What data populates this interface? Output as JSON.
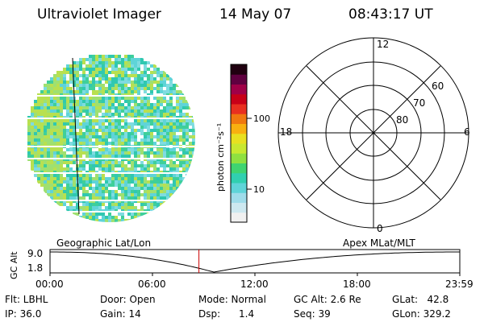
{
  "header": {
    "title": "Ultraviolet Imager",
    "date": "14 May 07",
    "time": "08:43:17 UT"
  },
  "colorbar": {
    "label": "photon cm⁻²s⁻¹",
    "ticks": [
      "100",
      "10"
    ],
    "scale": "log",
    "colors": [
      "#f0f0f0",
      "#cde8f0",
      "#9fdcea",
      "#5fd4d8",
      "#30d0b0",
      "#3fd470",
      "#8fe040",
      "#c8e830",
      "#e8e020",
      "#f8b010",
      "#f07810",
      "#e83020",
      "#c80018",
      "#a00048",
      "#600040",
      "#200010"
    ]
  },
  "image_panel": {
    "dominant_colors": [
      "#5fd4d8",
      "#30c8b0",
      "#9fe070",
      "#b0e040",
      "#ffffff"
    ]
  },
  "polar_plot": {
    "mlt_labels": {
      "top": "12",
      "left": "18",
      "right": "6",
      "bottom": "0"
    },
    "lat_labels": [
      "60",
      "70",
      "80"
    ],
    "rings": 4
  },
  "timeline": {
    "left_label": "Geographic Lat/Lon",
    "right_label": "Apex MLat/MLT",
    "y_axis_label": "GC Alt",
    "y_ticks": [
      "9.0",
      "1.8"
    ],
    "x_ticks": [
      "00:00",
      "06:00",
      "12:00",
      "18:00",
      "23:59"
    ],
    "current_time_hours": 8.72,
    "marker_color": "#cc0000",
    "min_altitude_time_hours": 9.6
  },
  "status": {
    "flt": "Flt: LBHL",
    "ip": "IP: 36.0",
    "door": "Door: Open",
    "gain": "Gain: 14",
    "mode": "Mode: Normal",
    "dsp": "Dsp:      1.4",
    "gcalt": "GC Alt: 2.6 Re",
    "seq": "Seq: 39",
    "glat": "GLat:   42.8",
    "glon": "GLon: 329.2"
  }
}
